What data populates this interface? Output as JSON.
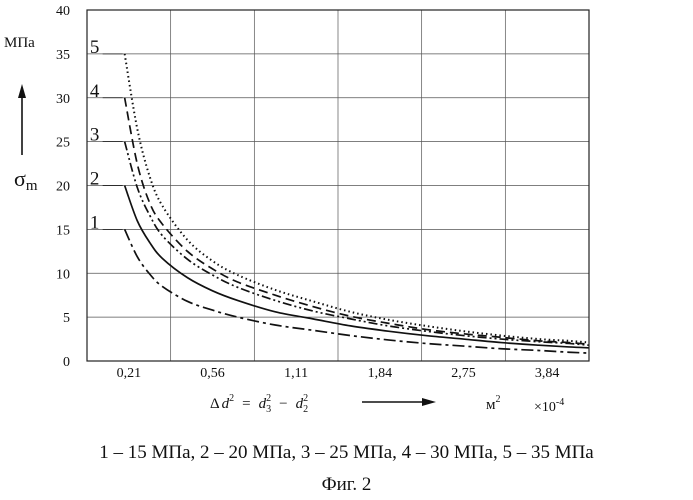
{
  "chart_data": {
    "type": "line",
    "ylabel": "σ",
    "ylabel_sub": "m",
    "y_unit": "МПа",
    "xlabel_formula": {
      "lhs_delta": "Δ",
      "lhs_var": "d",
      "lhs_exp": "2",
      "eq": "=",
      "t1_var": "d",
      "t1_sub": "3",
      "t1_sup": "2",
      "minus": "−",
      "t2_var": "d",
      "t2_sub": "2",
      "t2_sup": "2"
    },
    "x_unit": "м",
    "x_unit_exp": "2",
    "x_multiplier": "×10",
    "x_multiplier_exp": "-4",
    "x_ticks": [
      "0,21",
      "0,56",
      "1,11",
      "1,84",
      "2,75",
      "3,84"
    ],
    "y_ticks": [
      "0",
      "5",
      "10",
      "15",
      "20",
      "25",
      "30",
      "35",
      "40"
    ],
    "ylim": [
      0,
      40
    ],
    "x": [
      0.3,
      0.4,
      0.5,
      0.6,
      0.8,
      1.0,
      1.2,
      1.5,
      1.8,
      2.1,
      2.4,
      2.7,
      3.0,
      3.3,
      3.6,
      3.84,
      4.0
    ],
    "series": [
      {
        "name": "1",
        "style": "dashdot",
        "values": [
          15,
          11.9,
          9.9,
          8.5,
          6.8,
          5.8,
          5.0,
          4.1,
          3.5,
          2.9,
          2.4,
          2.0,
          1.7,
          1.4,
          1.2,
          1.0,
          0.9
        ]
      },
      {
        "name": "2",
        "style": "solid",
        "values": [
          20,
          16.0,
          13.5,
          11.7,
          9.5,
          8.0,
          6.9,
          5.6,
          4.8,
          4.0,
          3.4,
          2.9,
          2.5,
          2.1,
          1.8,
          1.6,
          1.5
        ]
      },
      {
        "name": "3",
        "style": "dashdotdot",
        "values": [
          25,
          19.8,
          16.6,
          14.3,
          11.6,
          9.8,
          8.4,
          6.9,
          5.7,
          4.8,
          4.0,
          3.4,
          2.9,
          2.5,
          2.2,
          2.0,
          1.8
        ]
      },
      {
        "name": "4",
        "style": "dashed",
        "values": [
          30,
          22.5,
          18.0,
          15.6,
          12.5,
          10.5,
          9.0,
          7.5,
          6.2,
          5.1,
          4.3,
          3.6,
          3.1,
          2.7,
          2.3,
          2.1,
          1.9
        ]
      },
      {
        "name": "5",
        "style": "dotted",
        "values": [
          35,
          26.5,
          21.0,
          17.7,
          13.8,
          11.4,
          9.8,
          8.1,
          6.8,
          5.6,
          4.7,
          4.0,
          3.4,
          2.9,
          2.5,
          2.3,
          2.1
        ]
      }
    ],
    "grid": true,
    "legend_caption": "1 – 15 МПа, 2 – 20 МПа, 3 – 25 МПа, 4 – 30 МПа, 5 – 35 МПа",
    "figure_label": "Фиг. 2"
  }
}
